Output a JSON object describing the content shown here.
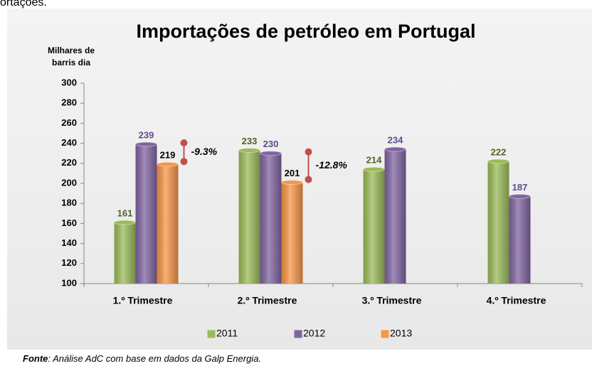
{
  "caption_fragment": "ortações.",
  "chart_data": {
    "type": "bar",
    "title": "Importações de petróleo em Portugal",
    "y_label": [
      "Milhares de",
      "barris dia"
    ],
    "categories": [
      "1.º Trimestre",
      "2.º Trimestre",
      "3.º Trimestre",
      "4.º Trimestre"
    ],
    "series": [
      {
        "name": "2011",
        "color": "#9bbb59",
        "values": [
          161,
          233,
          214,
          222
        ]
      },
      {
        "name": "2012",
        "color": "#8064a2",
        "values": [
          239,
          230,
          234,
          187
        ]
      },
      {
        "name": "2013",
        "color": "#f79646",
        "values": [
          219,
          201,
          null,
          null
        ]
      }
    ],
    "ylim": [
      100,
      300
    ],
    "yticks": [
      100,
      120,
      140,
      160,
      180,
      200,
      220,
      240,
      260,
      280,
      300
    ],
    "annotations": [
      "-9.3%",
      "-12.8%"
    ],
    "source_label": "Fonte",
    "source_text": ": Análise AdC com base em dados da Galp Energia."
  }
}
